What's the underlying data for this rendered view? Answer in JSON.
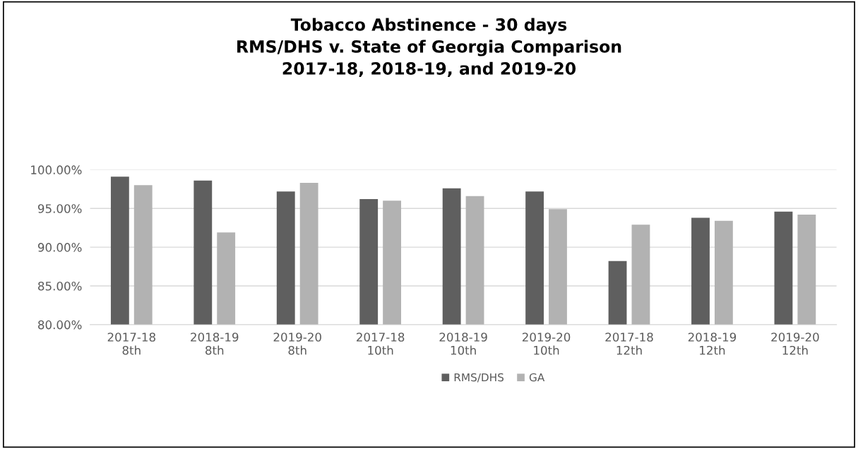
{
  "chart_data": {
    "type": "bar",
    "title": "Tobacco Abstinence - 30 days\nRMS/DHS v. State of Georgia Comparison\n2017-18, 2018-19, and 2019-20",
    "categories": [
      "2017-18\n8th",
      "2018-19\n8th",
      "2019-20\n8th",
      "2017-18\n10th",
      "2018-19\n10th",
      "2019-20\n10th",
      "2017-18\n12th",
      "2018-19\n12th",
      "2019-20\n12th"
    ],
    "series": [
      {
        "name": "RMS/DHS",
        "color": "#5f5f5f",
        "values": [
          99.1,
          98.6,
          97.2,
          96.2,
          97.6,
          97.2,
          88.2,
          93.8,
          94.6
        ]
      },
      {
        "name": "GA",
        "color": "#b2b2b2",
        "values": [
          98.0,
          91.9,
          98.3,
          96.0,
          96.6,
          94.9,
          92.9,
          93.4,
          94.2
        ]
      }
    ],
    "ylim": [
      80,
      100
    ],
    "yticks": [
      {
        "value": 80,
        "label": "80.00%"
      },
      {
        "value": 85,
        "label": "85.00%"
      },
      {
        "value": 90,
        "label": "90.00%"
      },
      {
        "value": 95,
        "label": "95.00%"
      },
      {
        "value": 100,
        "label": "100.00%"
      }
    ],
    "grid": "y",
    "legend": "bottom"
  }
}
